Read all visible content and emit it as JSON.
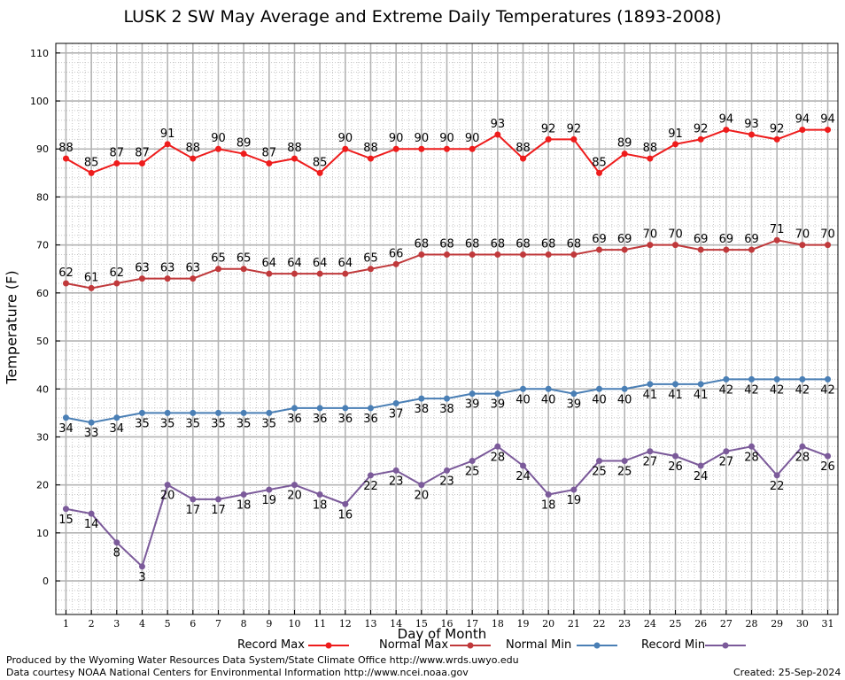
{
  "title": "LUSK 2 SW May Average and Extreme Daily Temperatures (1893-2008)",
  "footer": {
    "line1": "Produced by the Wyoming Water Resources Data System/State Climate Office http://www.wrds.uwyo.edu",
    "line2": "Data courtesy NOAA National Centers for Environmental Information http://www.ncei.noaa.gov",
    "created": "Created:  25-Sep-2024"
  },
  "chart_data": {
    "type": "line",
    "title": "LUSK 2 SW May Average and Extreme Daily Temperatures (1893-2008)",
    "xlabel": "Day of Month",
    "ylabel": "Temperature (F)",
    "x": [
      1,
      2,
      3,
      4,
      5,
      6,
      7,
      8,
      9,
      10,
      11,
      12,
      13,
      14,
      15,
      16,
      17,
      18,
      19,
      20,
      21,
      22,
      23,
      24,
      25,
      26,
      27,
      28,
      29,
      30,
      31
    ],
    "xlim": [
      0.6,
      31.4
    ],
    "ylim": [
      -7,
      112
    ],
    "yticks": [
      0,
      10,
      20,
      30,
      40,
      50,
      60,
      70,
      80,
      90,
      100,
      110
    ],
    "grid": true,
    "legend_position": "bottom",
    "series": [
      {
        "name": "Record Max",
        "color": "#ee1c1c",
        "label_position": "above",
        "values": [
          88,
          85,
          87,
          87,
          91,
          88,
          90,
          89,
          87,
          88,
          85,
          90,
          88,
          90,
          90,
          90,
          90,
          93,
          88,
          92,
          92,
          85,
          89,
          88,
          91,
          92,
          94,
          93,
          92,
          94,
          94
        ]
      },
      {
        "name": "Normal Max",
        "color": "#c0393b",
        "label_position": "above",
        "values": [
          62,
          61,
          62,
          63,
          63,
          63,
          65,
          65,
          64,
          64,
          64,
          64,
          65,
          66,
          68,
          68,
          68,
          68,
          68,
          68,
          68,
          69,
          69,
          70,
          70,
          69,
          69,
          69,
          71,
          70,
          70
        ]
      },
      {
        "name": "Normal Min",
        "color": "#4a7fb5",
        "label_position": "below",
        "values": [
          34,
          33,
          34,
          35,
          35,
          35,
          35,
          35,
          35,
          36,
          36,
          36,
          36,
          37,
          38,
          38,
          39,
          39,
          40,
          40,
          39,
          40,
          40,
          41,
          41,
          41,
          42,
          42,
          42,
          42,
          42
        ]
      },
      {
        "name": "Record Min",
        "color": "#7b5a9a",
        "label_position": "below",
        "values": [
          15,
          14,
          8,
          3,
          20,
          17,
          17,
          18,
          19,
          20,
          18,
          16,
          22,
          23,
          20,
          23,
          25,
          28,
          24,
          18,
          19,
          25,
          25,
          27,
          26,
          24,
          27,
          28,
          22,
          28,
          26
        ]
      }
    ]
  }
}
